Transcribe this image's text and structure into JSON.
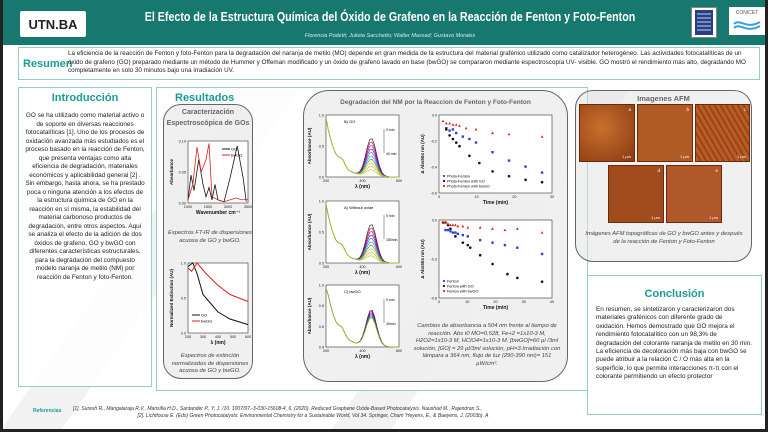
{
  "header": {
    "title": "El Efecto de la Estructura Química del Óxido de Grafeno en la Reacción de Fenton y Foto-Fenton",
    "authors": "Florencia Podetti; Julieta Sacchetto; Walter Massad; Gustavo Morales",
    "logo_left": "UTN.BA",
    "logo_right_1": "UNRC",
    "logo_right_2": "CONICET"
  },
  "resumen": {
    "title": "Resumen",
    "text": "La eficiencia de la reacción de Fenton y foto-Fenton para la degradación del naranja de metilo (MO) depende en gran medida de la estructura del material grafénico utilizado como catalizador heterogéneo. Las actividades fotocatalíticas de un óxido de grafeno (GO) preparado mediante un método de Hummer y Offeman modificado y un óxido de grafeno lavado en base (bwGO) se compararon mediante espectroscopía UV- visible. GO mostró el rendimiento más alto, degradando MO completamente en solo 30 minutos bajo una irradiación UV."
  },
  "introduccion": {
    "title": "Introducción",
    "text": "GO se ha utilizado como material activo o de soporte en diversas reacciones fotocatalíticas [1]. Uno de los procesos de oxidación avanzada más estudiados es el proceso basado en la reacción de Fenton, que presenta ventajas como alta eficiencia de degradación, materiales económicos y aplicabilidad general [2] . Sin embargo, hasta ahora, se ha prestado poca o ninguna atención a los efectos de la estructura química de GO en la reacción en sí misma, la estabilidad del material carbonoso productos de degradación, entre otros aspectos. Aquí se analiza el efecto de la adición de dos óxidos de grafeno, GO y bwGO con diferentes características estructurales, para la degradación del compuesto modelo naranja de metilo (NM) por reacción de Fenton y foto-Fenton."
  },
  "resultados": {
    "title": "Resultados",
    "caracterizacion": {
      "title": "Caracterización Espectroscópica de GOs",
      "ftir": {
        "ylabel": "Absorbance",
        "xlabel": "Wavenumber cm⁻¹",
        "yticks": [
          "0.10",
          "0.05",
          "0.00"
        ],
        "xticks": [
          "1000",
          "1500",
          "3000",
          "3500"
        ],
        "legend": [
          "GO",
          "bwGO"
        ],
        "caption": "Espectros FT-IR de dispersiones acuosa de GO y bwGO."
      },
      "uv": {
        "ylabel": "Normalized Extinction (AU)",
        "xlabel": "λ (nm)",
        "yticks": [
          "1.0",
          "0.5",
          "0.0"
        ],
        "xticks": [
          "200",
          "300",
          "400",
          "500",
          "600"
        ],
        "legend": [
          "GO",
          "bwGO"
        ],
        "caption": "Espectros de extinción normalizados de dispersiones acuosa de GO y bwGO."
      }
    },
    "degradacion": {
      "title": "Degradación del NM por la Reaccion de Fenton y Foto-Fenton",
      "spectra": [
        {
          "label": "B) GO",
          "ylabel": "Absorbance (AU)",
          "xlabel": "λ (nm)",
          "yticks": [
            "1.0",
            "0.5",
            "0.0"
          ],
          "xticks": [
            "200",
            "400",
            "600"
          ],
          "t_start": "0 min",
          "t_end": "40 min"
        },
        {
          "label": "A) Without oxide",
          "ylabel": "Absorbance (AU)",
          "xlabel": "λ (nm)",
          "yticks": [
            "1.0",
            "0.5",
            "0.0"
          ],
          "xticks": [
            "200",
            "400",
            "600"
          ],
          "t_start": "0 min",
          "t_end": "180min"
        },
        {
          "label": "C) bwGO",
          "ylabel": "Absorbance (AU)",
          "xlabel": "λ (nm)",
          "yticks": [
            "1.0",
            "0.8",
            "0.6",
            "0.4"
          ],
          "xticks": [
            "200",
            "400",
            "600"
          ],
          "t_start": "0 min",
          "t_end": "40min"
        }
      ],
      "kinetics": [
        {
          "ylabel": "Δ Abs504 nm (AU)",
          "xlabel": "Time (min)",
          "yticks": [
            "0.0",
            "-0.2",
            "-0.4",
            "-0.6"
          ],
          "ymin": -0.6,
          "ymax": 0.05,
          "xticks": [
            "0",
            "10",
            "20",
            "30"
          ],
          "xmax": 33,
          "series": [
            {
              "name": "Photo-Fenton",
              "color": "#2f3fe0",
              "marker": "square",
              "x": [
                1,
                2,
                3,
                4,
                6,
                8,
                10,
                15,
                20,
                25,
                30
              ],
              "y": [
                -0.06,
                -0.08,
                -0.07,
                -0.1,
                -0.13,
                -0.15,
                -0.18,
                -0.26,
                -0.33,
                -0.38,
                -0.43
              ]
            },
            {
              "name": "Photo-Fenton with GO",
              "color": "#111111",
              "marker": "circle",
              "x": [
                1,
                2,
                3,
                4,
                5,
                8,
                11,
                15,
                20,
                25,
                30
              ],
              "y": [
                -0.07,
                -0.12,
                -0.15,
                -0.18,
                -0.21,
                -0.29,
                -0.35,
                -0.42,
                -0.46,
                -0.49,
                -0.51
              ]
            },
            {
              "name": "Photo-Fenton with bwGO",
              "color": "#e02020",
              "marker": "triangle",
              "x": [
                0,
                1,
                2,
                3,
                4,
                5,
                7,
                10,
                15,
                20,
                30
              ],
              "y": [
                0,
                -0.02,
                -0.02,
                -0.03,
                -0.03,
                -0.04,
                -0.06,
                -0.07,
                -0.1,
                -0.11,
                -0.13
              ]
            }
          ]
        },
        {
          "ylabel": "Δ Abs504 nm (AU)",
          "xlabel": "Time (min)",
          "yticks": [
            "0.0",
            "-0.3",
            "-0.6"
          ],
          "ymin": -0.6,
          "ymax": 0.02,
          "xticks": [
            "0",
            "10",
            "20",
            "30",
            "40"
          ],
          "xmax": 44,
          "series": [
            {
              "name": "Fenton",
              "color": "#2f3fe0",
              "marker": "square",
              "x": [
                1,
                2,
                3,
                4,
                5,
                6,
                8,
                10,
                15,
                20,
                25,
                30,
                40
              ],
              "y": [
                -0.06,
                -0.06,
                -0.07,
                -0.08,
                -0.08,
                -0.09,
                -0.1,
                -0.11,
                -0.14,
                -0.16,
                -0.18,
                -0.2,
                -0.25
              ]
            },
            {
              "name": "Fenton with GO",
              "color": "#111111",
              "marker": "circle",
              "x": [
                0,
                1,
                2,
                3,
                5,
                8,
                10,
                11,
                15,
                20,
                26,
                30,
                40
              ],
              "y": [
                0,
                0,
                -0.02,
                -0.05,
                -0.11,
                -0.16,
                -0.18,
                -0.2,
                -0.26,
                -0.33,
                -0.41,
                -0.44,
                -0.47
              ]
            },
            {
              "name": "Fenton with bwGO",
              "color": "#e02020",
              "marker": "triangle",
              "x": [
                0,
                1,
                2,
                3,
                4,
                5,
                6,
                8,
                10,
                15,
                20,
                25,
                30,
                40
              ],
              "y": [
                0,
                0,
                -0.01,
                -0.02,
                -0.02,
                -0.02,
                -0.03,
                -0.03,
                -0.04,
                -0.04,
                -0.05,
                -0.06,
                -0.05,
                -0.08
              ]
            }
          ]
        }
      ],
      "caption": "Cambios de absorbancia a 504 nm frente al tiempo de reacción.   Abs t0 MO=0.528, Fe+2 =1x10-3 M, H2O2=1x10-3 M, HClO4=1x10-3 M, [bwGO]=60 µl /3ml solución, [GO] = 29 µl/3ml solución, pH=3.Irradiación con lámpara a 364 nm, flujo de luz (290-390 nm)= 151 µW/cm²."
    },
    "afm": {
      "title": "Imagenes AFM",
      "panels": [
        "a",
        "b",
        "c",
        "d",
        "e"
      ],
      "scale": "1 µm",
      "caption": "Imágenes AFM topográficas de GO y bwGO antes y después de la reacción de Fenton y Foto-Fenton"
    }
  },
  "conclusion": {
    "title": "Conclusión",
    "text": "En resumen, se sintetizaron y caracterizaron dos materiales grafénicos con diferente grado de oxidación. Hemos demostrado que GO mejora el rendimiento fotocatalítico con un 98,3% de degradación del colorante naranja de metilo en 30 min. La eficiencia de decoloración más baja con bwGO se puede atribuir a la relación C / O más alta en la superficie, lo que permite interacciones π-π con el colorante permitiendo un efecto protector"
  },
  "referencias": {
    "title": "Referencias",
    "items": [
      "[1]. Suresh R., Mangalaraja R.V., Mansilla H.D., Santander P., Y. J. /10. 1007/97.-3-030-15608-4_6. (2020). Reduced Graphene Oxide-Based Photocatalysis. Naushad M., Rajendran S.,",
      "[2]. Lichtfouse E. (Eds) Green Photocatalysts. Environmental Chemistry for a Sustainable World, Vol 34. Springer, Cham 'Heyens, E., & Baeyens, J. (2003b). A"
    ]
  },
  "colors": {
    "header": "#16786f",
    "accent": "#1a9b94",
    "go": "#111111",
    "bwgo": "#e02020"
  }
}
